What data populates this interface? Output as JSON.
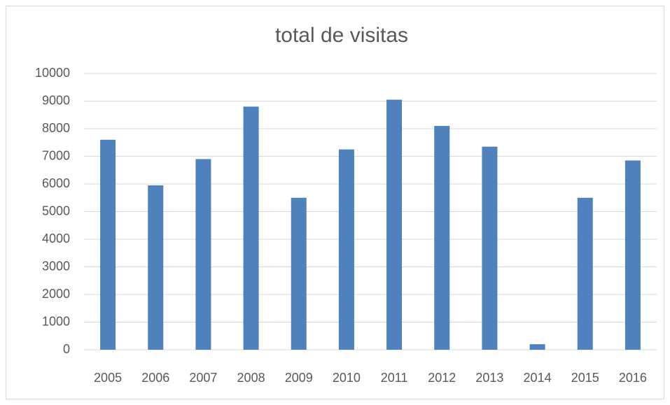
{
  "chart_data": {
    "type": "bar",
    "title": "total de visitas",
    "categories": [
      "2005",
      "2006",
      "2007",
      "2008",
      "2009",
      "2010",
      "2011",
      "2012",
      "2013",
      "2014",
      "2015",
      "2016"
    ],
    "values": [
      7600,
      5950,
      6900,
      8800,
      5500,
      7250,
      9050,
      8100,
      7350,
      200,
      5500,
      6850
    ],
    "color": "#4f81bd",
    "ylim": [
      0,
      10000
    ],
    "yticks": [
      0,
      1000,
      2000,
      3000,
      4000,
      5000,
      6000,
      7000,
      8000,
      9000,
      10000
    ],
    "grid": true
  }
}
